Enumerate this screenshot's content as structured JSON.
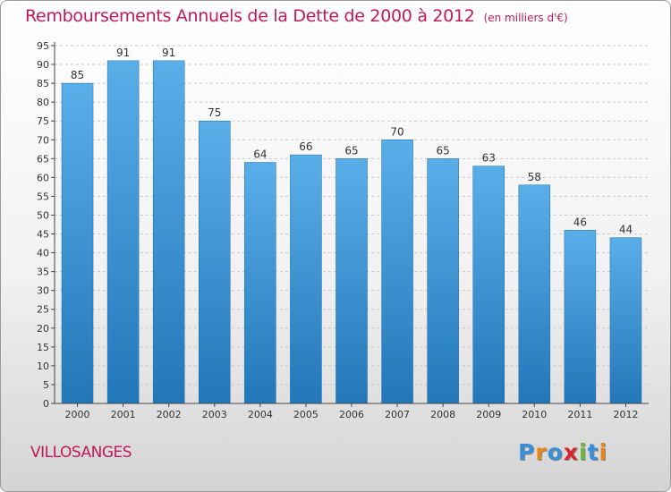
{
  "title": "Remboursements Annuels de la Dette de 2000 à 2012",
  "subtitle": "(en milliers d'€)",
  "commune": "VILLOSANGES",
  "logo": {
    "letters": [
      {
        "char": "P",
        "color": "#3a8fd6"
      },
      {
        "char": "r",
        "color": "#e8851a"
      },
      {
        "char": "o",
        "color": "#3a8fd6"
      },
      {
        "char": "x",
        "color": "#d8262c"
      },
      {
        "char": "i",
        "color": "#6cb33f"
      },
      {
        "char": "t",
        "color": "#3a8fd6"
      },
      {
        "char": "i",
        "color": "#e8851a"
      }
    ]
  },
  "colors": {
    "title": "#c2185b",
    "bar_top": "#5aaee8",
    "bar_bottom": "#2277b9",
    "axis": "#444444",
    "grid": "#c8c8c8"
  },
  "chart_data": {
    "type": "bar",
    "categories": [
      "2000",
      "2001",
      "2002",
      "2003",
      "2004",
      "2005",
      "2006",
      "2007",
      "2008",
      "2009",
      "2010",
      "2011",
      "2012"
    ],
    "values": [
      85,
      91,
      91,
      75,
      64,
      66,
      65,
      70,
      65,
      63,
      58,
      46,
      44
    ],
    "ylim": [
      0,
      95
    ],
    "yticks": [
      0,
      5,
      10,
      15,
      20,
      25,
      30,
      35,
      40,
      45,
      50,
      55,
      60,
      65,
      70,
      75,
      80,
      85,
      90,
      95
    ],
    "grid": true,
    "data_labels": true
  }
}
